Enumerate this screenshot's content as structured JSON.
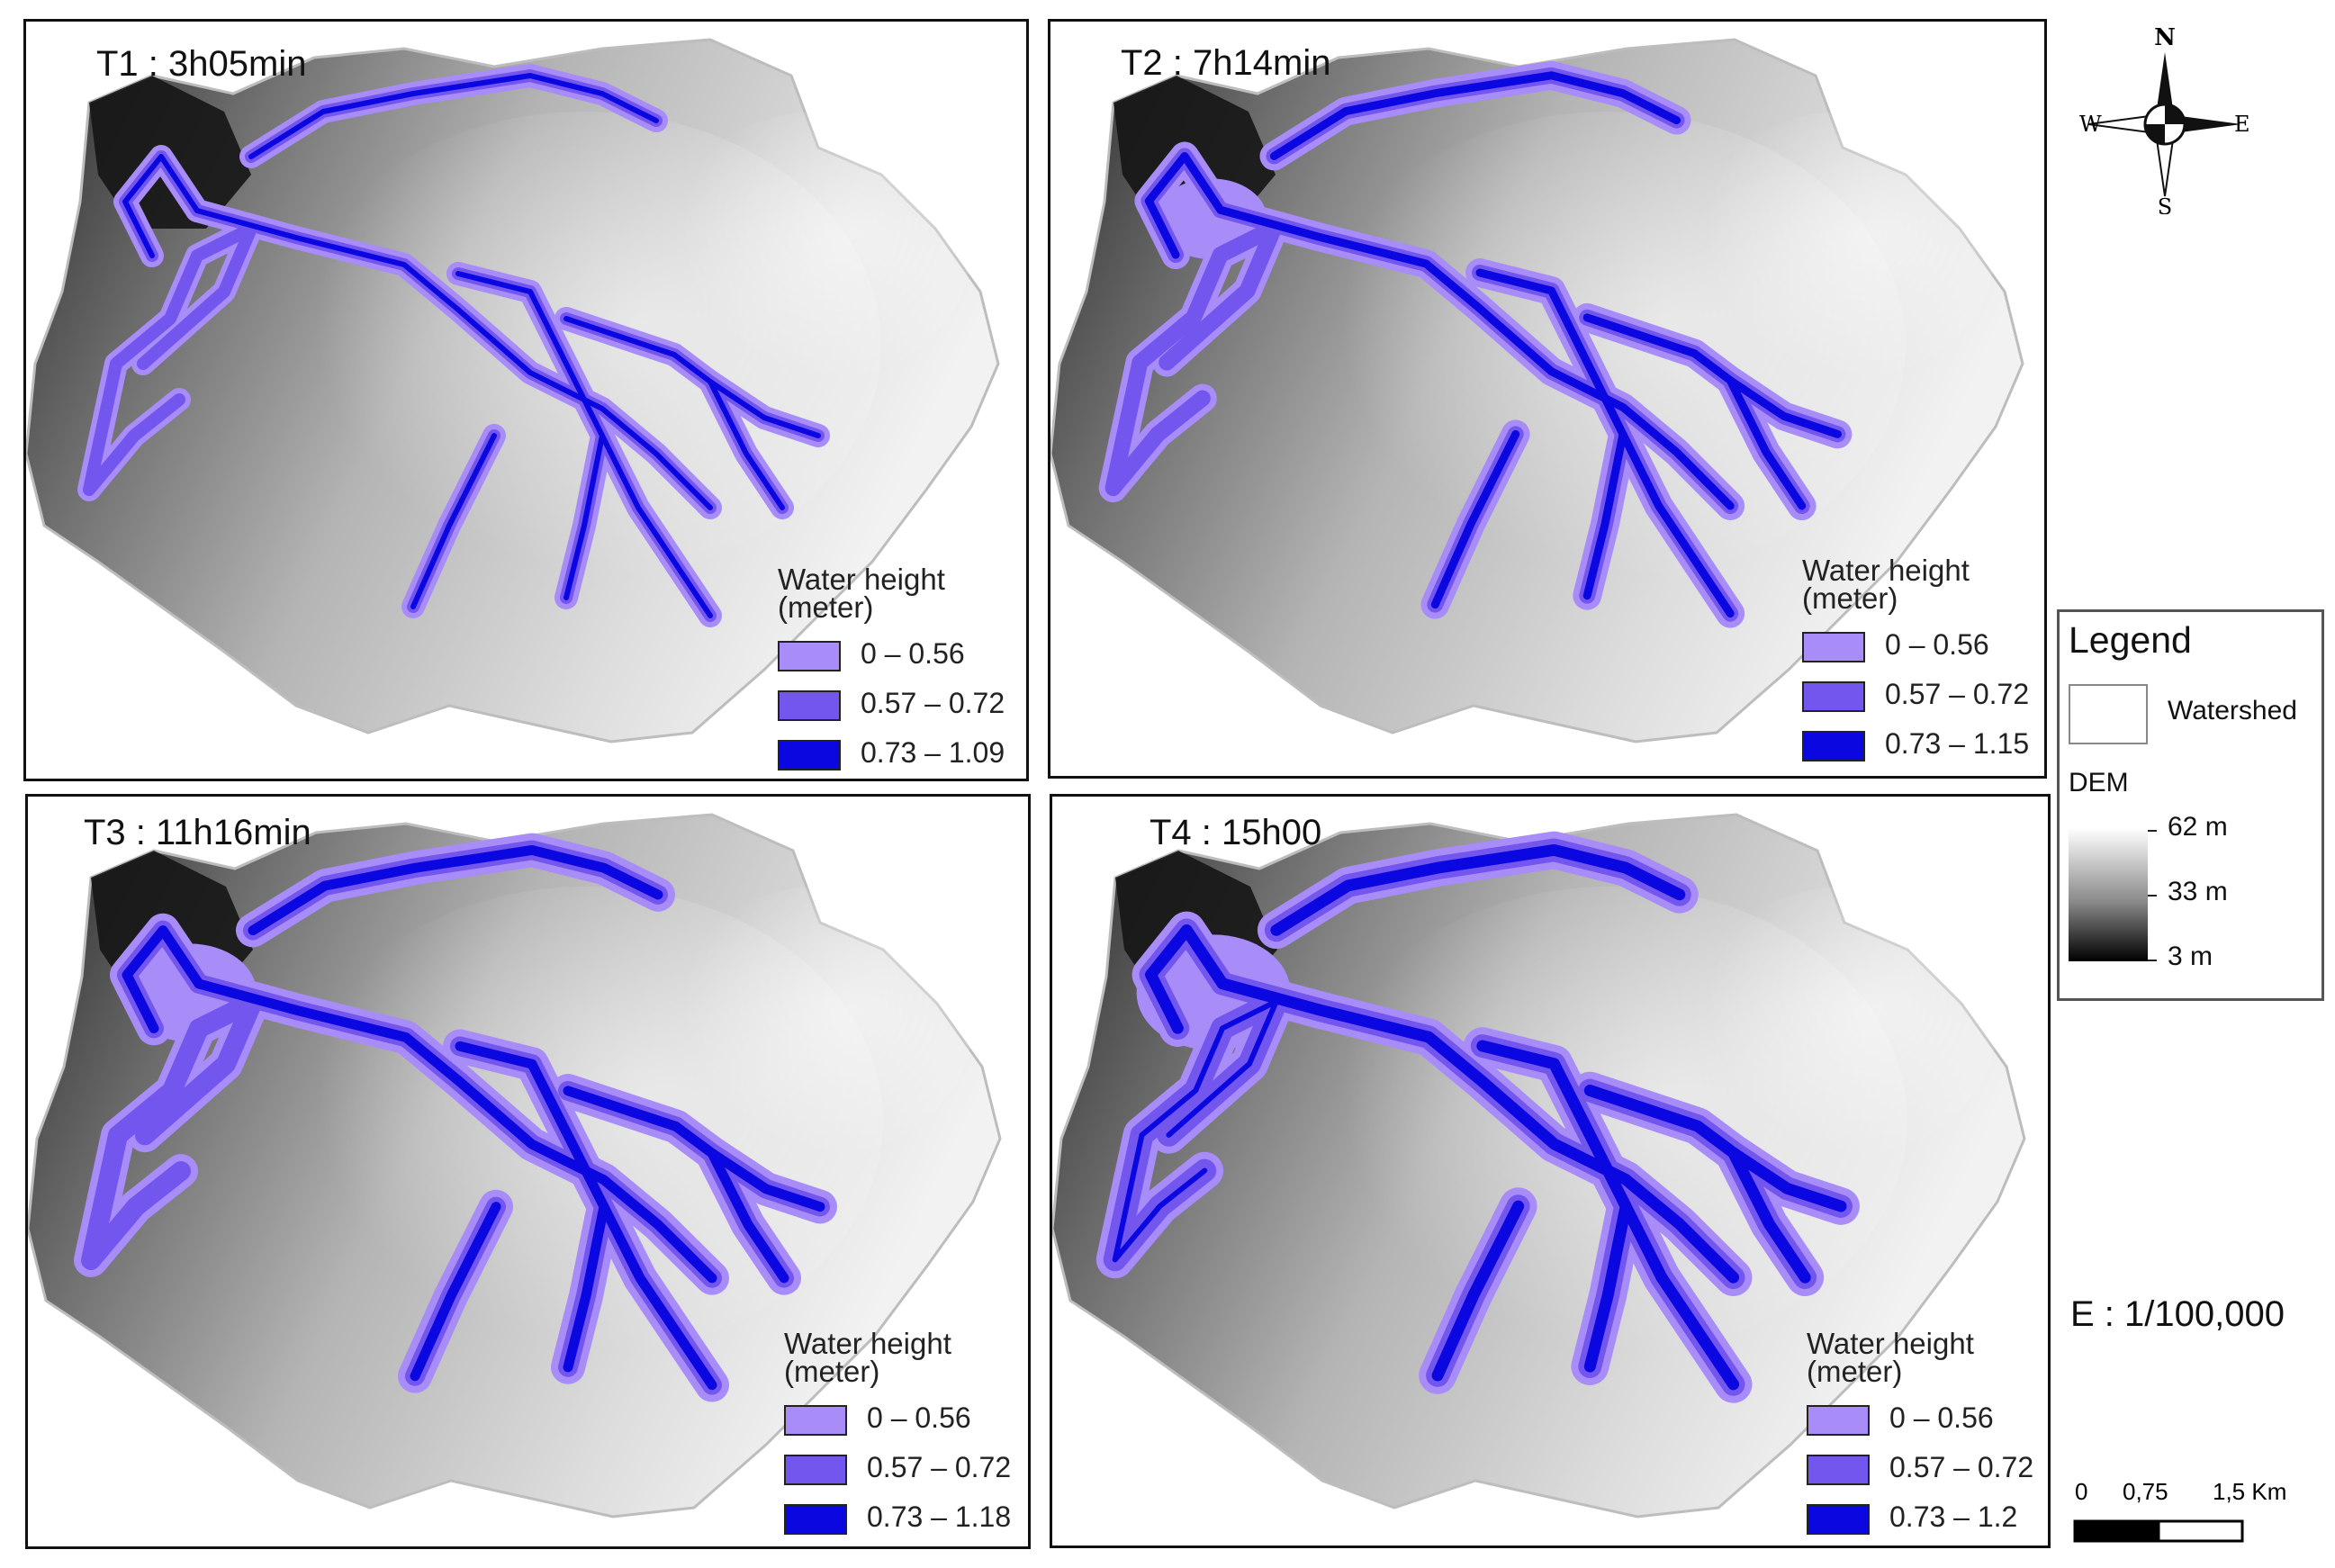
{
  "panels": [
    {
      "title": "T1 : 3h05min",
      "legend_title": [
        "Water height",
        "(meter)"
      ],
      "classes": [
        "0 – 0.56",
        "0.57 – 0.72",
        "0.73 – 1.09"
      ]
    },
    {
      "title": "T2 : 7h14min",
      "legend_title": [
        "Water height",
        "(meter)"
      ],
      "classes": [
        "0 – 0.56",
        "0.57 – 0.72",
        "0.73 – 1.15"
      ]
    },
    {
      "title": "T3 : 11h16min",
      "legend_title": [
        "Water height",
        "(meter)"
      ],
      "classes": [
        "0 – 0.56",
        "0.57 – 0.72",
        "0.73 – 1.18"
      ]
    },
    {
      "title": "T4 : 15h00",
      "legend_title": [
        "Water height",
        "(meter)"
      ],
      "classes": [
        "0 – 0.56",
        "0.57 – 0.72",
        "0.73 – 1.2"
      ]
    }
  ],
  "class_colors": [
    "#a88cf8",
    "#7356ee",
    "#0a07e0"
  ],
  "compass": {
    "n": "N",
    "s": "S",
    "e": "E",
    "w": "W"
  },
  "legend": {
    "title": "Legend",
    "watershed": "Watershed",
    "dem_title": "DEM",
    "dem_ticks": [
      "62 m",
      "33 m",
      "3 m"
    ]
  },
  "scale": {
    "ratio": "E : 1/100,000",
    "labels": [
      "0",
      "0,75",
      "1,5 Km"
    ]
  }
}
